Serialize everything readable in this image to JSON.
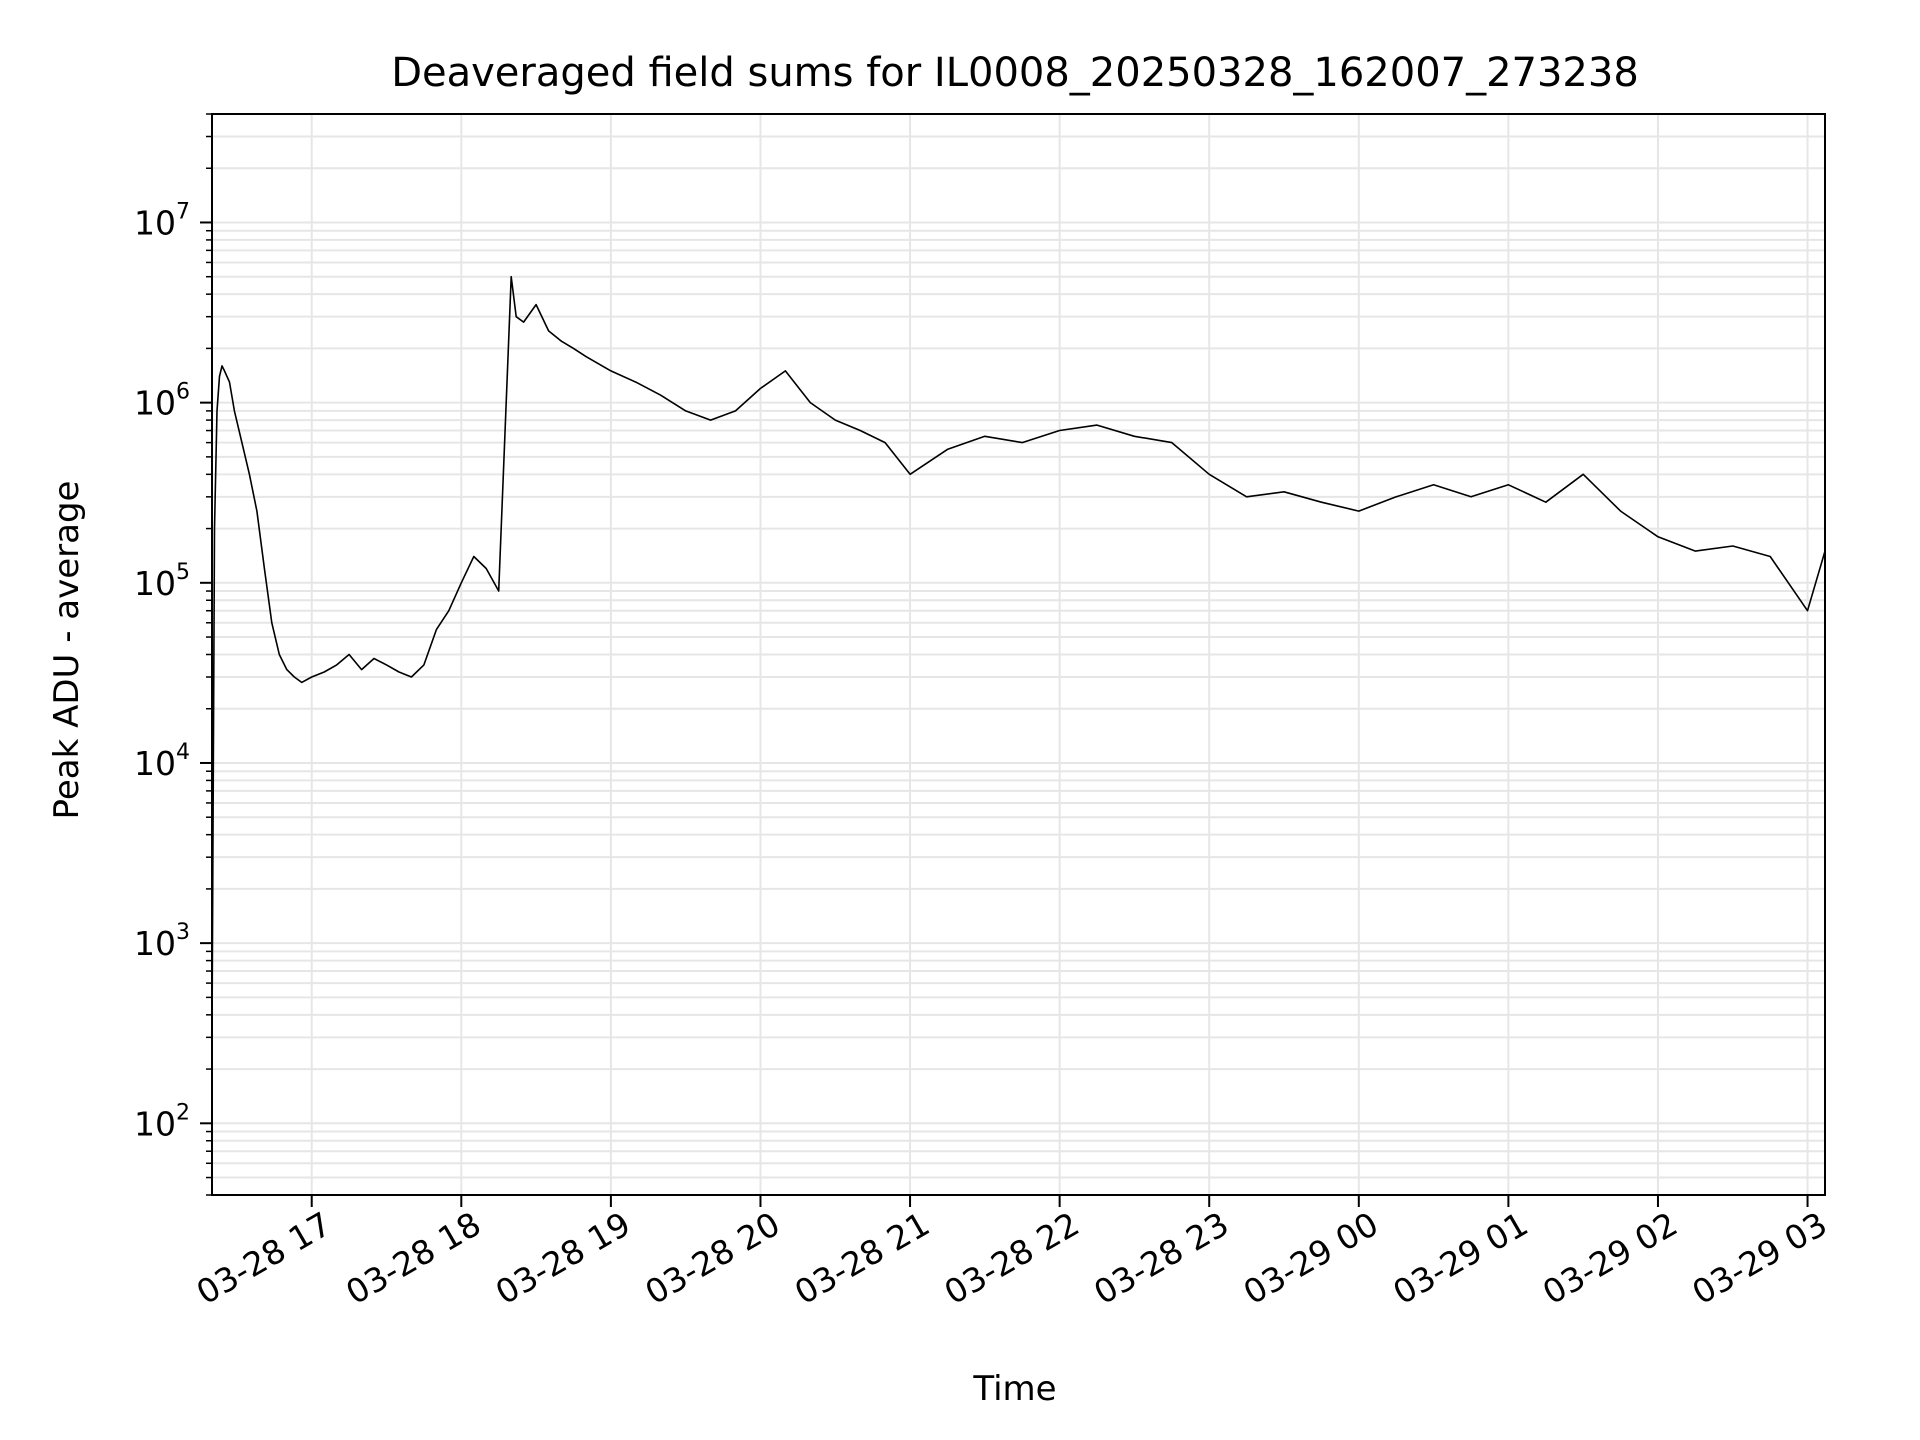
{
  "chart_data": {
    "type": "line",
    "title": "Deaveraged field sums for IL0008_20250328_162007_273238",
    "xlabel": "Time",
    "ylabel": "Peak ADU - average",
    "y_scale": "log",
    "ylim": [
      40,
      40000000
    ],
    "xlim": [
      "2025-03-28 16:20",
      "2025-03-29 03:07"
    ],
    "grid": true,
    "line_color": "#000000",
    "x_ticks": [
      {
        "t": "2025-03-28 17:00",
        "label": "03-28 17"
      },
      {
        "t": "2025-03-28 18:00",
        "label": "03-28 18"
      },
      {
        "t": "2025-03-28 19:00",
        "label": "03-28 19"
      },
      {
        "t": "2025-03-28 20:00",
        "label": "03-28 20"
      },
      {
        "t": "2025-03-28 21:00",
        "label": "03-28 21"
      },
      {
        "t": "2025-03-28 22:00",
        "label": "03-28 22"
      },
      {
        "t": "2025-03-28 23:00",
        "label": "03-28 23"
      },
      {
        "t": "2025-03-29 00:00",
        "label": "03-29 00"
      },
      {
        "t": "2025-03-29 01:00",
        "label": "03-29 01"
      },
      {
        "t": "2025-03-29 02:00",
        "label": "03-29 02"
      },
      {
        "t": "2025-03-29 03:00",
        "label": "03-29 03"
      }
    ],
    "y_ticks": [
      {
        "value": 100,
        "label": "10",
        "exp": "2"
      },
      {
        "value": 1000,
        "label": "10",
        "exp": "3"
      },
      {
        "value": 10000,
        "label": "10",
        "exp": "4"
      },
      {
        "value": 100000,
        "label": "10",
        "exp": "5"
      },
      {
        "value": 1000000,
        "label": "10",
        "exp": "6"
      },
      {
        "value": 10000000,
        "label": "10",
        "exp": "7"
      }
    ],
    "series": [
      {
        "x": [
          "2025-03-28 16:20",
          "2025-03-28 16:21",
          "2025-03-28 16:22",
          "2025-03-28 16:23",
          "2025-03-28 16:24",
          "2025-03-28 16:25",
          "2025-03-28 16:27",
          "2025-03-28 16:29",
          "2025-03-28 16:32",
          "2025-03-28 16:35",
          "2025-03-28 16:38",
          "2025-03-28 16:41",
          "2025-03-28 16:44",
          "2025-03-28 16:47",
          "2025-03-28 16:50",
          "2025-03-28 16:53",
          "2025-03-28 16:56",
          "2025-03-28 17:00",
          "2025-03-28 17:05",
          "2025-03-28 17:10",
          "2025-03-28 17:15",
          "2025-03-28 17:20",
          "2025-03-28 17:25",
          "2025-03-28 17:30",
          "2025-03-28 17:35",
          "2025-03-28 17:40",
          "2025-03-28 17:45",
          "2025-03-28 17:50",
          "2025-03-28 17:55",
          "2025-03-28 18:00",
          "2025-03-28 18:05",
          "2025-03-28 18:10",
          "2025-03-28 18:15",
          "2025-03-28 18:20",
          "2025-03-28 18:22",
          "2025-03-28 18:25",
          "2025-03-28 18:30",
          "2025-03-28 18:35",
          "2025-03-28 18:40",
          "2025-03-28 18:45",
          "2025-03-28 18:50",
          "2025-03-28 19:00",
          "2025-03-28 19:10",
          "2025-03-28 19:20",
          "2025-03-28 19:30",
          "2025-03-28 19:40",
          "2025-03-28 19:50",
          "2025-03-28 20:00",
          "2025-03-28 20:10",
          "2025-03-28 20:20",
          "2025-03-28 20:30",
          "2025-03-28 20:40",
          "2025-03-28 20:50",
          "2025-03-28 21:00",
          "2025-03-28 21:15",
          "2025-03-28 21:30",
          "2025-03-28 21:45",
          "2025-03-28 22:00",
          "2025-03-28 22:15",
          "2025-03-28 22:30",
          "2025-03-28 22:45",
          "2025-03-28 23:00",
          "2025-03-28 23:15",
          "2025-03-28 23:30",
          "2025-03-28 23:45",
          "2025-03-29 00:00",
          "2025-03-29 00:15",
          "2025-03-29 00:30",
          "2025-03-29 00:45",
          "2025-03-29 01:00",
          "2025-03-29 01:15",
          "2025-03-29 01:30",
          "2025-03-29 01:45",
          "2025-03-29 02:00",
          "2025-03-29 02:15",
          "2025-03-29 02:30",
          "2025-03-29 02:45",
          "2025-03-29 03:00",
          "2025-03-29 03:07"
        ],
        "y": [
          300,
          200000,
          900000,
          1400000,
          1600000,
          1500000,
          1300000,
          900000,
          600000,
          400000,
          250000,
          120000,
          60000,
          40000,
          33000,
          30000,
          28000,
          30000,
          32000,
          35000,
          40000,
          33000,
          38000,
          35000,
          32000,
          30000,
          35000,
          55000,
          70000,
          100000,
          140000,
          120000,
          90000,
          5000000,
          3000000,
          2800000,
          3500000,
          2500000,
          2200000,
          2000000,
          1800000,
          1500000,
          1300000,
          1100000,
          900000,
          800000,
          900000,
          1200000,
          1500000,
          1000000,
          800000,
          700000,
          600000,
          400000,
          550000,
          650000,
          600000,
          700000,
          750000,
          650000,
          600000,
          400000,
          300000,
          320000,
          280000,
          250000,
          300000,
          350000,
          300000,
          350000,
          280000,
          400000,
          250000,
          180000,
          150000,
          160000,
          140000,
          70000,
          150000
        ]
      }
    ]
  }
}
